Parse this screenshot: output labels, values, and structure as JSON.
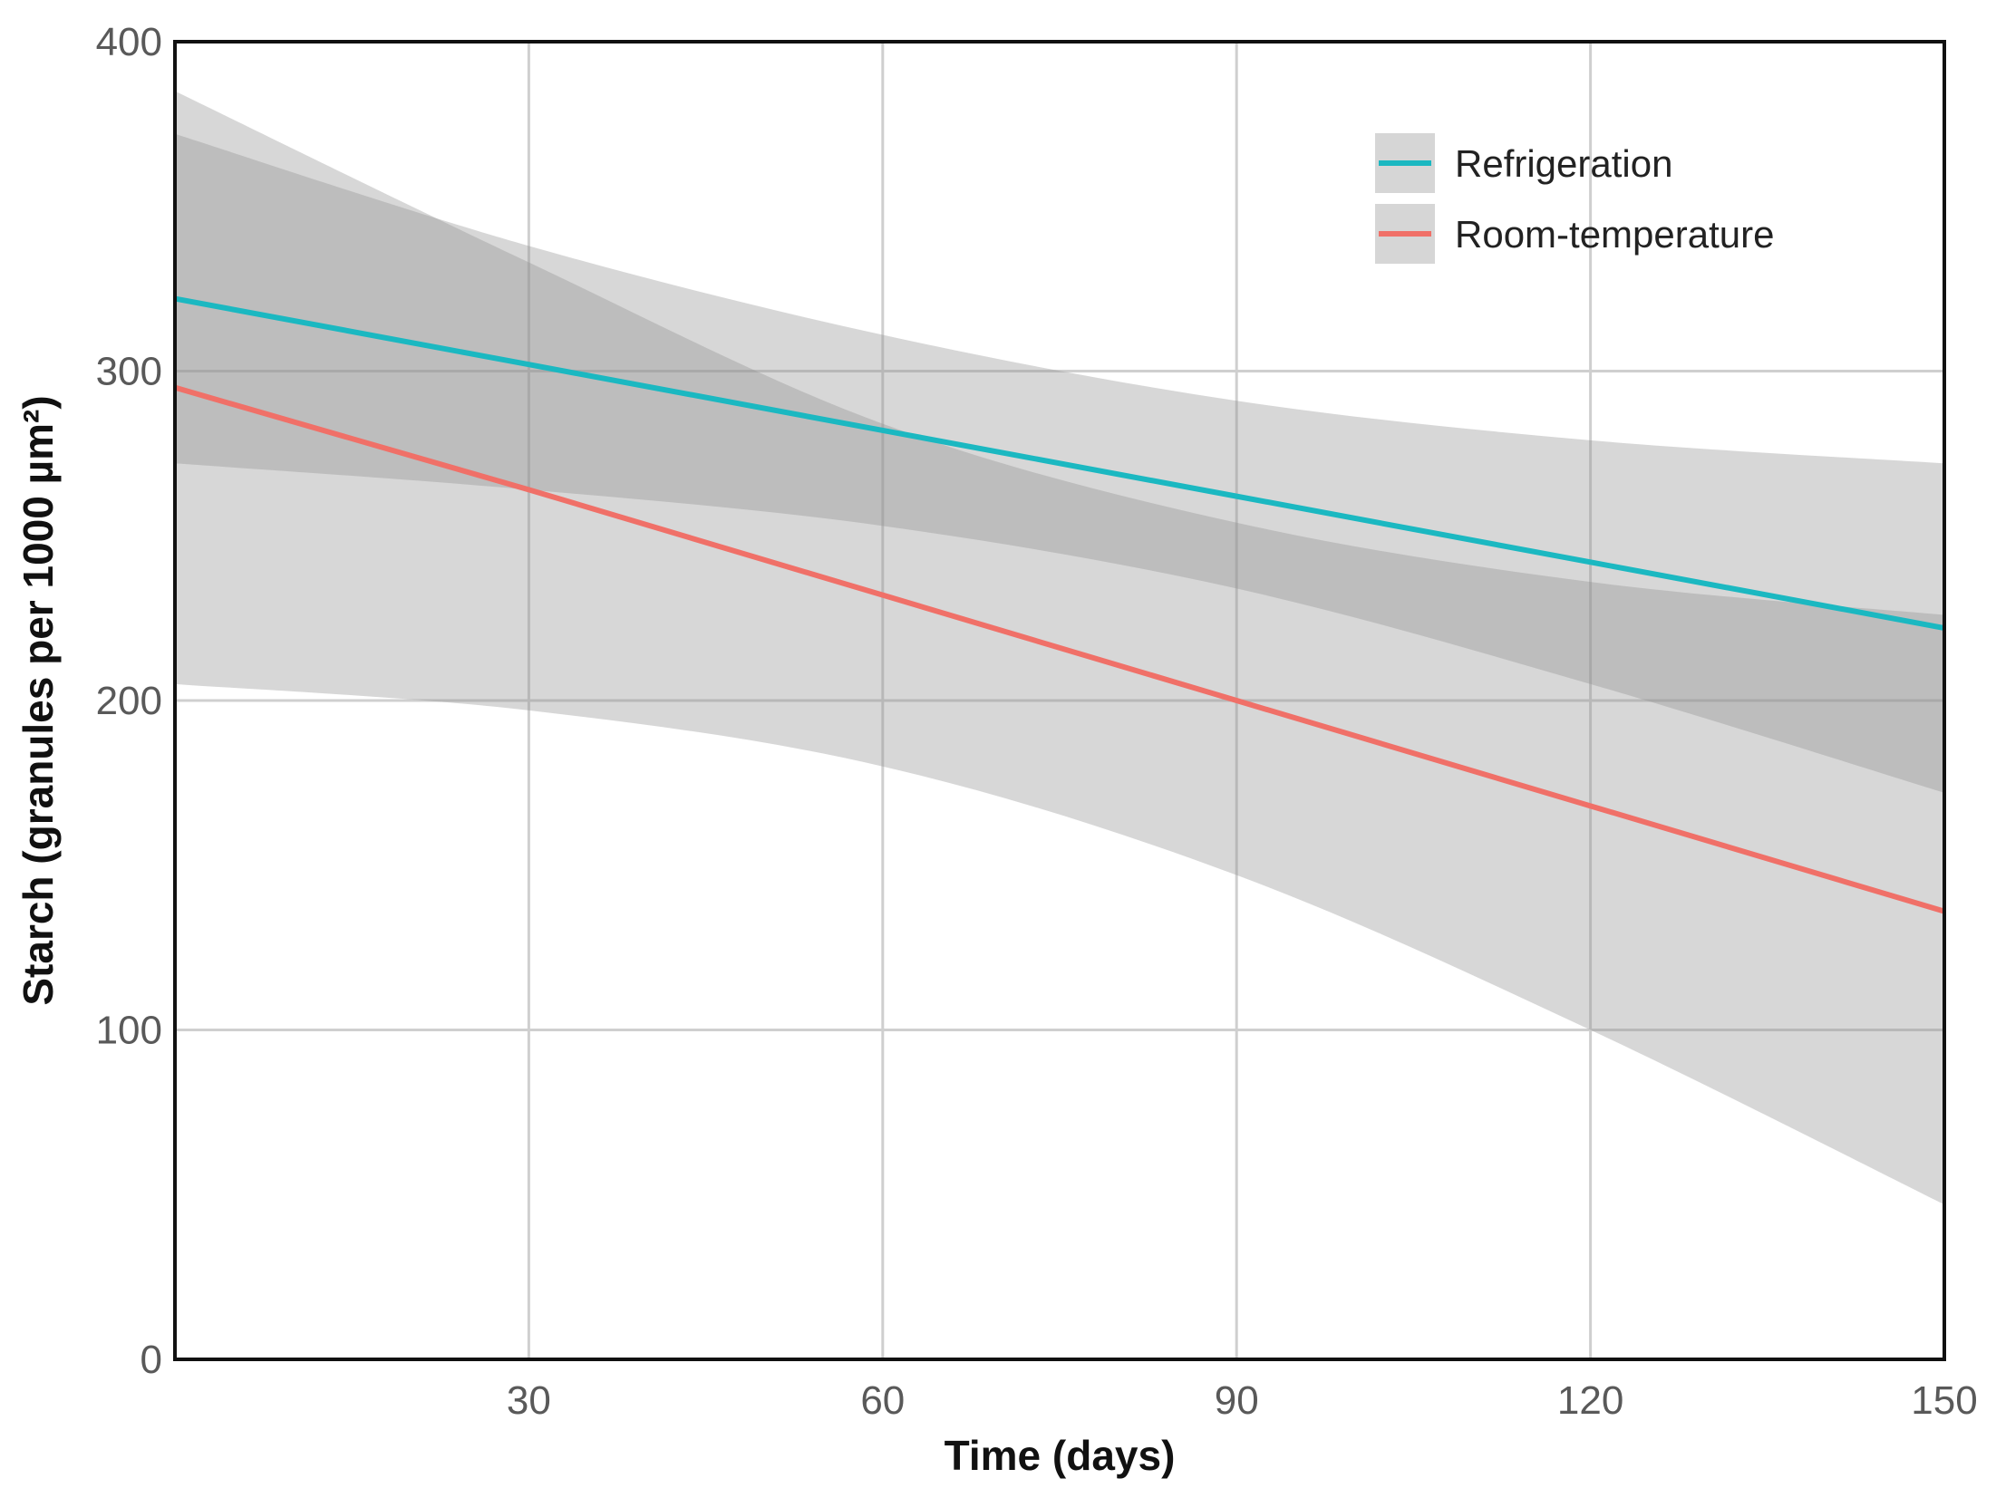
{
  "chart_data": {
    "type": "line",
    "xlabel": "Time (days)",
    "ylabel": "Starch (granules per 1000 µm²)",
    "xlim": [
      0,
      150
    ],
    "ylim": [
      0,
      400
    ],
    "xticks": [
      30,
      60,
      90,
      120,
      150
    ],
    "yticks": [
      0,
      100,
      200,
      300,
      400
    ],
    "grid": true,
    "legend_position": "top-right",
    "x": [
      0,
      30,
      60,
      90,
      120,
      150
    ],
    "series": [
      {
        "name": "Refrigeration",
        "color": "#1bb8c1",
        "values": [
          322,
          302,
          282,
          262,
          242,
          222
        ],
        "ci_lower": [
          272,
          264,
          253,
          234,
          205,
          172
        ],
        "ci_upper": [
          372,
          338,
          311,
          291,
          279,
          272
        ]
      },
      {
        "name": "Room-temperature",
        "color": "#f07068",
        "values": [
          295,
          264,
          232,
          200,
          168,
          136
        ],
        "ci_lower": [
          205,
          197,
          180,
          147,
          100,
          47
        ],
        "ci_upper": [
          385,
          333,
          284,
          254,
          236,
          226
        ]
      }
    ]
  }
}
